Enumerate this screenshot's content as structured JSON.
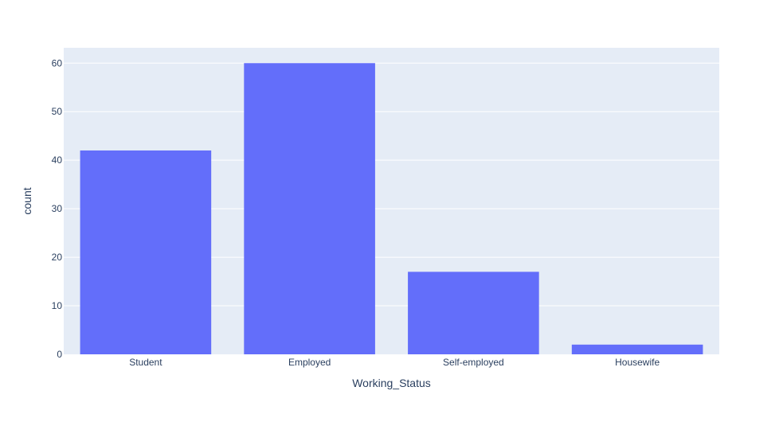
{
  "chart_data": {
    "type": "bar",
    "title": "",
    "xlabel": "Working_Status",
    "ylabel": "count",
    "categories": [
      "Student",
      "Employed",
      "Self-employed",
      "Housewife"
    ],
    "values": [
      42,
      60,
      17,
      2
    ],
    "ylim": [
      0,
      63.16
    ],
    "yticks": [
      0,
      10,
      20,
      30,
      40,
      50,
      60
    ],
    "grid": true,
    "legend": "none",
    "colors": {
      "bar": "#636efa",
      "plot_background": "#e5ecf6",
      "grid": "#ffffff",
      "text": "#2a3f5f"
    }
  }
}
